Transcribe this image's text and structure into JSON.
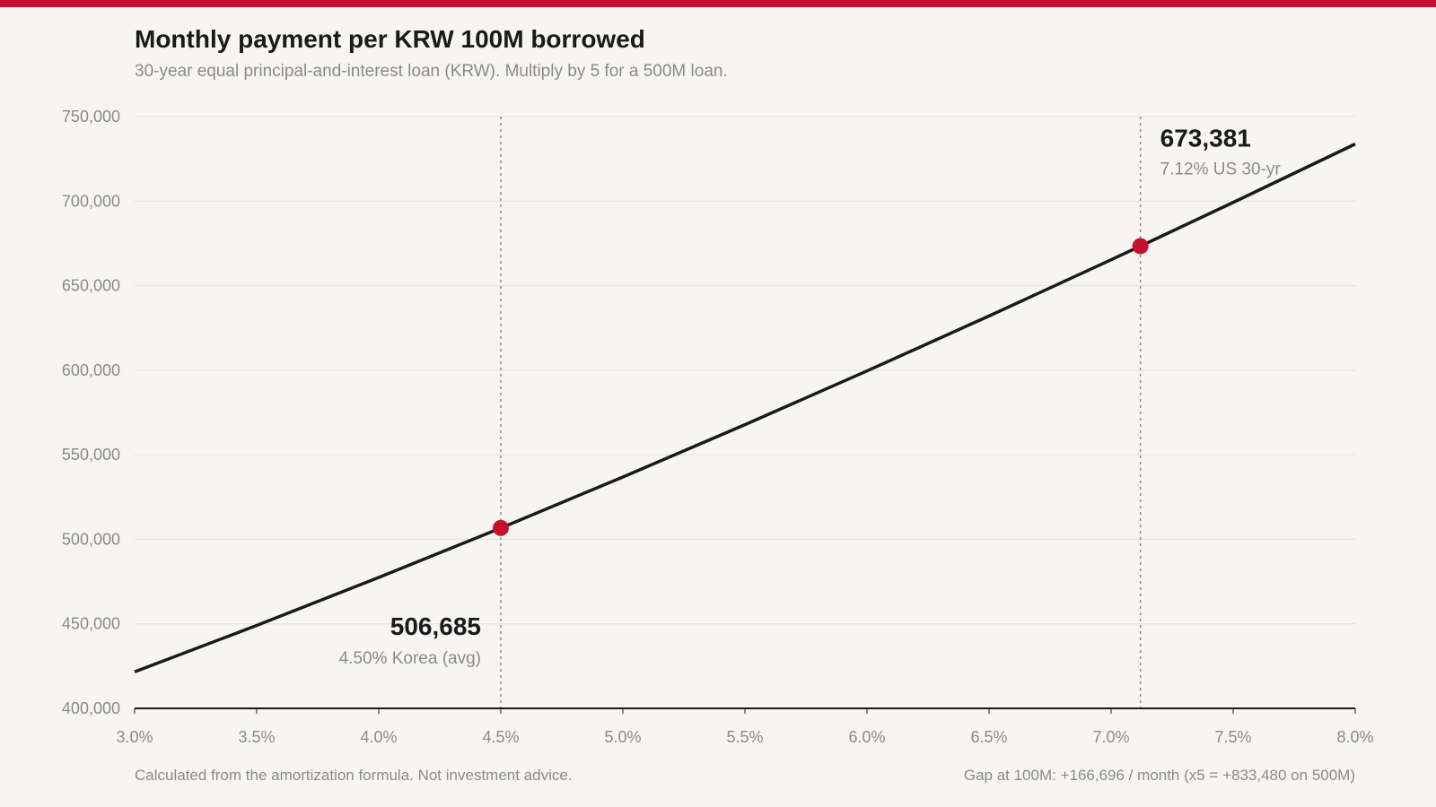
{
  "header": {
    "title": "Monthly payment per KRW 100M borrowed",
    "subtitle": "30-year equal principal-and-interest loan (KRW). Multiply by 5 for a 500M loan."
  },
  "footer": {
    "note": "Calculated from the amortization formula. Not investment advice.",
    "gap": "Gap at 100M: +166,696 / month (x5 = +833,480 on 500M)"
  },
  "colors": {
    "accent": "#c8102e",
    "line": "#1a1a1a",
    "grid": "#e4e2de",
    "muted": "#8a8a8a"
  },
  "chart_data": {
    "type": "line",
    "title": "Monthly payment per KRW 100M borrowed",
    "subtitle": "30-year equal principal-and-interest loan (KRW). Multiply by 5 for a 500M loan.",
    "xlabel": "",
    "ylabel": "",
    "xlim": [
      3.0,
      8.0
    ],
    "ylim": [
      400000,
      750000
    ],
    "x_ticks": [
      3.0,
      3.5,
      4.0,
      4.5,
      5.0,
      5.5,
      6.0,
      6.5,
      7.0,
      7.5,
      8.0
    ],
    "x_tick_labels": [
      "3.0%",
      "3.5%",
      "4.0%",
      "4.5%",
      "5.0%",
      "5.5%",
      "6.0%",
      "6.5%",
      "7.0%",
      "7.5%",
      "8.0%"
    ],
    "y_ticks": [
      400000,
      450000,
      500000,
      550000,
      600000,
      650000,
      700000,
      750000
    ],
    "y_tick_labels": [
      "400,000",
      "450,000",
      "500,000",
      "550,000",
      "600,000",
      "650,000",
      "700,000",
      "750,000"
    ],
    "grid": true,
    "series": [
      {
        "x": [
          3.0,
          3.5,
          4.0,
          4.5,
          5.0,
          5.5,
          6.0,
          6.5,
          7.0,
          7.12,
          7.5,
          8.0
        ],
        "values": [
          421604,
          449045,
          477415,
          506685,
          536822,
          567789,
          599551,
          632068,
          665302,
          673381,
          699215,
          733765
        ]
      }
    ],
    "annotations": [
      {
        "x": 4.5,
        "y": 506685,
        "value_label": "506,685",
        "label": "4.50% Korea (avg)",
        "placement": "below-left"
      },
      {
        "x": 7.12,
        "y": 673381,
        "value_label": "673,381",
        "label": "7.12% US 30-yr",
        "placement": "above-right"
      }
    ]
  }
}
